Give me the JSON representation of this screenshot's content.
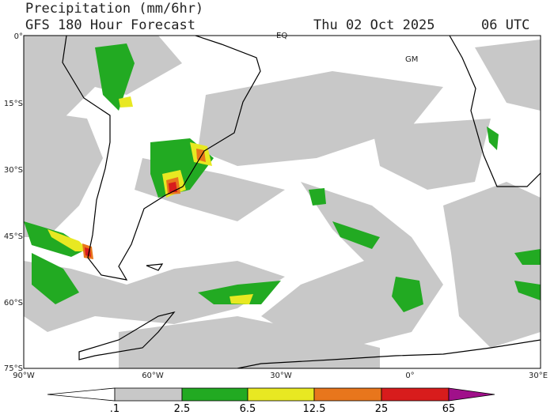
{
  "header": {
    "title": "Precipitation (mm/6hr)",
    "subtitle": "GFS 180 Hour Forecast",
    "date": "Thu 02 Oct 2025",
    "time": "06 UTC"
  },
  "map": {
    "lat_labels": [
      "0°",
      "15°S",
      "30°S",
      "45°S",
      "60°S",
      "75°S"
    ],
    "lon_labels": [
      "90°W",
      "60°W",
      "30°W",
      "0°",
      "30°E"
    ],
    "place_labels": [
      "EQ",
      "GM"
    ]
  },
  "colorbar": {
    "labels": [
      ".1",
      "2.5",
      "6.5",
      "12.5",
      "25",
      "65"
    ]
  }
}
